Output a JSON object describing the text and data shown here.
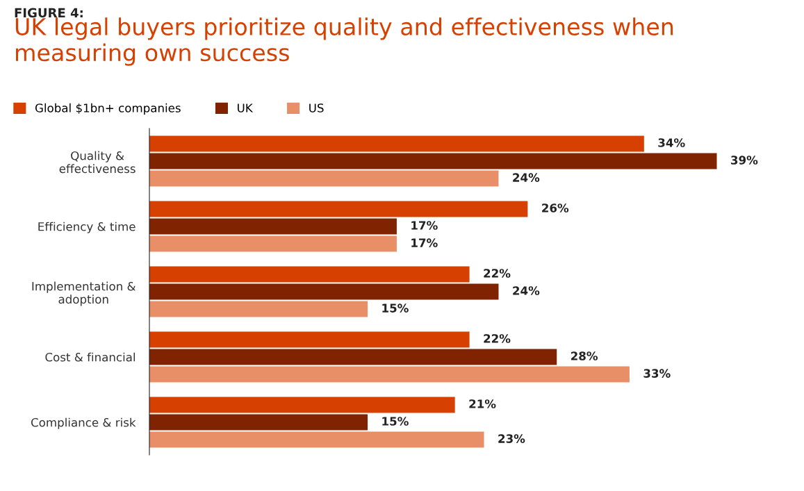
{
  "chart_data": {
    "type": "bar",
    "orientation": "horizontal",
    "title": "UK legal buyers prioritize quality and effectiveness when\nmeasuring own success",
    "annotations": [
      "FIGURE 4:"
    ],
    "categories": [
      "Quality &\neffectiveness",
      "Efficiency & time",
      "Implementation &\nadoption",
      "Cost & financial",
      "Compliance & risk"
    ],
    "series": [
      {
        "name": "Global $1bn+ companies",
        "color": "#d64000",
        "values": [
          34,
          26,
          22,
          22,
          21
        ],
        "value_labels": [
          "34%",
          "26%",
          "22%",
          "22%",
          "21%"
        ]
      },
      {
        "name": "UK",
        "color": "#7f2300",
        "values": [
          39,
          17,
          24,
          28,
          15
        ],
        "value_labels": [
          "39%",
          "17%",
          "24%",
          "28%",
          "15%"
        ]
      },
      {
        "name": "US",
        "color": "#e88f68",
        "values": [
          24,
          17,
          15,
          33,
          23
        ],
        "value_labels": [
          "24%",
          "17%",
          "15%",
          "33%",
          "23%"
        ]
      }
    ],
    "legend": "top left",
    "grid": false
  }
}
